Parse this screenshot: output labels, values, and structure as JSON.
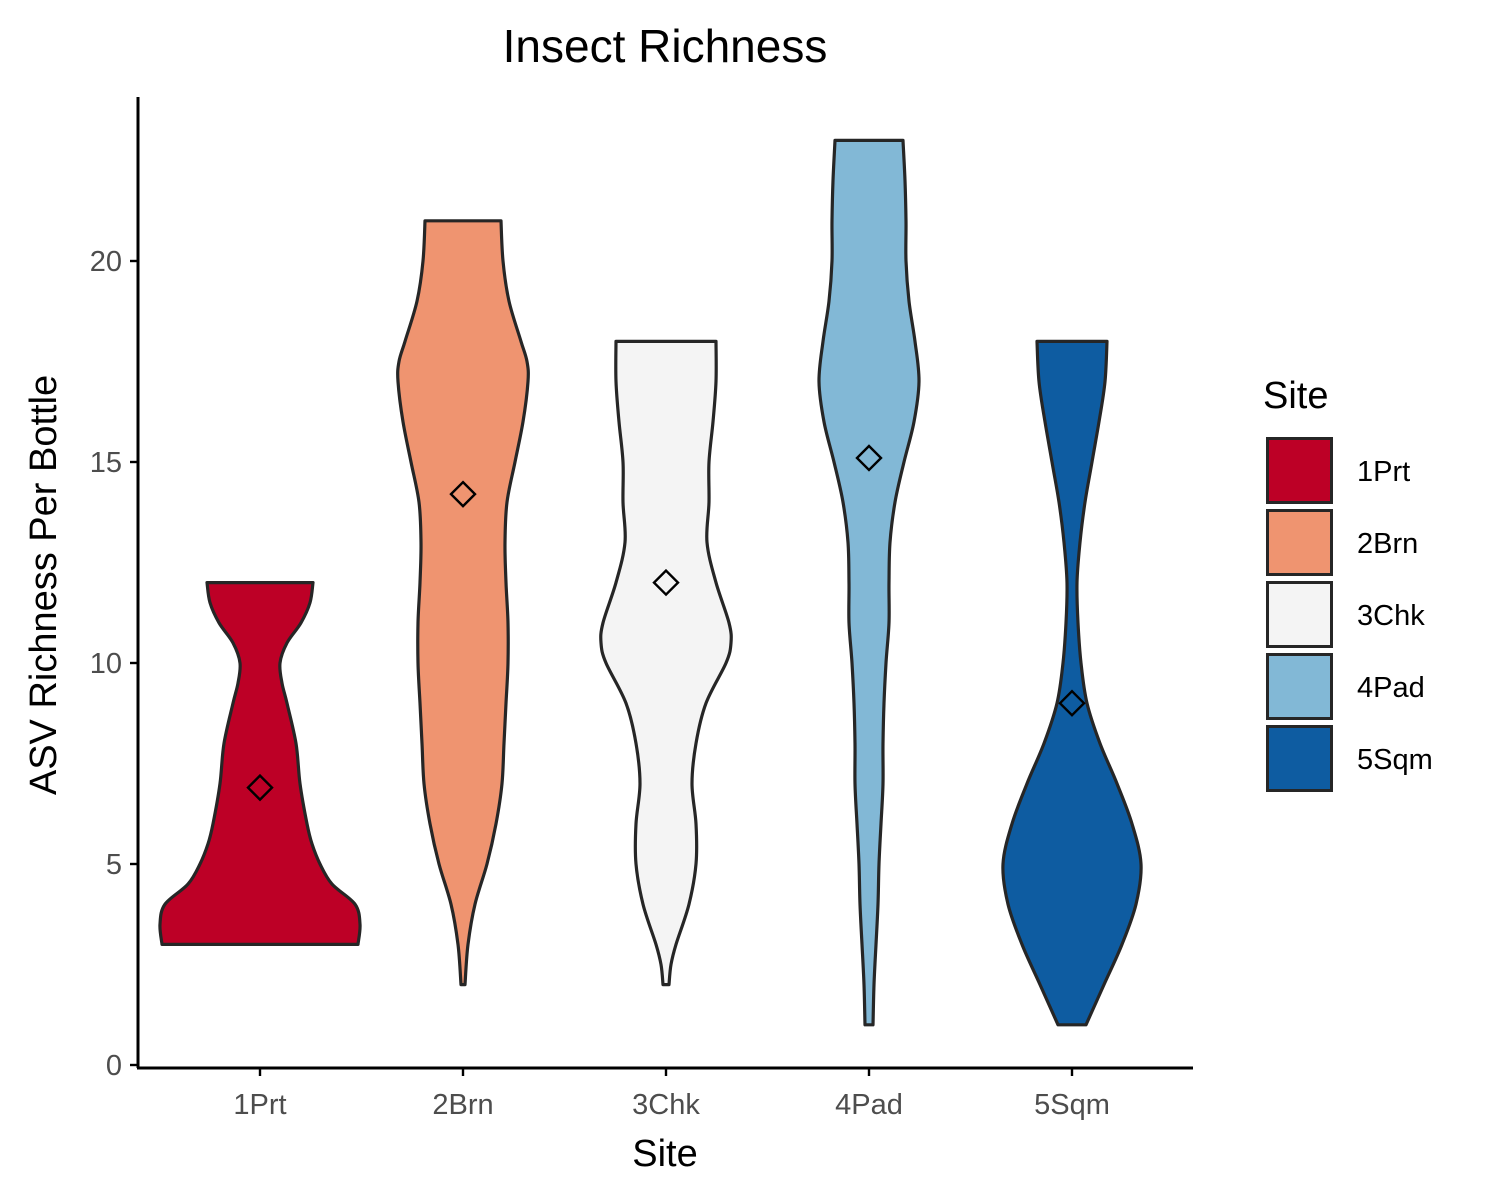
{
  "chart_data": {
    "type": "violin",
    "title": "Insect Richness",
    "xlabel": "Site",
    "ylabel": "ASV Richness Per Bottle",
    "ylim": [
      0,
      24
    ],
    "yticks": [
      0,
      5,
      10,
      15,
      20
    ],
    "categories": [
      "1Prt",
      "2Brn",
      "3Chk",
      "4Pad",
      "5Sqm"
    ],
    "grid": false,
    "legend": {
      "title": "Site",
      "placement": "right",
      "entries": [
        "1Prt",
        "2Brn",
        "3Chk",
        "4Pad",
        "5Sqm"
      ]
    },
    "marker": "open-diamond (mean)",
    "series": [
      {
        "category": "1Prt",
        "color": "#bd0026",
        "min": 3,
        "max": 12,
        "mean": 6.9,
        "profile": [
          [
            3,
            0.98
          ],
          [
            3.5,
            1.0
          ],
          [
            4,
            0.95
          ],
          [
            4.5,
            0.72
          ],
          [
            5,
            0.6
          ],
          [
            5.5,
            0.52
          ],
          [
            6,
            0.47
          ],
          [
            7,
            0.4
          ],
          [
            8,
            0.36
          ],
          [
            9,
            0.27
          ],
          [
            9.5,
            0.22
          ],
          [
            10,
            0.2
          ],
          [
            10.5,
            0.27
          ],
          [
            11,
            0.41
          ],
          [
            11.5,
            0.5
          ],
          [
            12,
            0.53
          ]
        ]
      },
      {
        "category": "2Brn",
        "color": "#ef9470",
        "min": 2,
        "max": 21,
        "mean": 14.2,
        "profile": [
          [
            2,
            0.02
          ],
          [
            3,
            0.05
          ],
          [
            4,
            0.12
          ],
          [
            5,
            0.24
          ],
          [
            6,
            0.33
          ],
          [
            7,
            0.39
          ],
          [
            8,
            0.41
          ],
          [
            9,
            0.43
          ],
          [
            10,
            0.45
          ],
          [
            11,
            0.45
          ],
          [
            12,
            0.43
          ],
          [
            13,
            0.42
          ],
          [
            14,
            0.44
          ],
          [
            15,
            0.52
          ],
          [
            16,
            0.6
          ],
          [
            17,
            0.65
          ],
          [
            17.5,
            0.64
          ],
          [
            18,
            0.58
          ],
          [
            19,
            0.46
          ],
          [
            20,
            0.4
          ],
          [
            21,
            0.38
          ]
        ]
      },
      {
        "category": "3Chk",
        "color": "#f4f4f4",
        "min": 2,
        "max": 18,
        "mean": 12.0,
        "profile": [
          [
            2,
            0.03
          ],
          [
            2.5,
            0.05
          ],
          [
            3,
            0.1
          ],
          [
            4,
            0.23
          ],
          [
            5,
            0.3
          ],
          [
            6,
            0.3
          ],
          [
            7,
            0.26
          ],
          [
            8,
            0.3
          ],
          [
            9,
            0.4
          ],
          [
            10,
            0.6
          ],
          [
            10.5,
            0.65
          ],
          [
            11,
            0.63
          ],
          [
            12,
            0.5
          ],
          [
            13,
            0.41
          ],
          [
            14,
            0.43
          ],
          [
            15,
            0.43
          ],
          [
            16,
            0.47
          ],
          [
            17,
            0.5
          ],
          [
            18,
            0.5
          ]
        ]
      },
      {
        "category": "4Pad",
        "color": "#82b8d6",
        "min": 1,
        "max": 23,
        "mean": 15.1,
        "profile": [
          [
            1,
            0.04
          ],
          [
            2,
            0.05
          ],
          [
            3,
            0.07
          ],
          [
            4,
            0.09
          ],
          [
            5,
            0.1
          ],
          [
            6,
            0.12
          ],
          [
            7,
            0.14
          ],
          [
            8,
            0.14
          ],
          [
            9,
            0.15
          ],
          [
            10,
            0.17
          ],
          [
            11,
            0.2
          ],
          [
            12,
            0.2
          ],
          [
            13,
            0.21
          ],
          [
            14,
            0.26
          ],
          [
            15,
            0.35
          ],
          [
            16,
            0.45
          ],
          [
            17,
            0.5
          ],
          [
            18,
            0.46
          ],
          [
            19,
            0.4
          ],
          [
            20,
            0.37
          ],
          [
            21,
            0.37
          ],
          [
            22,
            0.36
          ],
          [
            23,
            0.34
          ]
        ]
      },
      {
        "category": "5Sqm",
        "color": "#0e5ca1",
        "min": 1,
        "max": 18,
        "mean": 9.0,
        "profile": [
          [
            1,
            0.14
          ],
          [
            2,
            0.32
          ],
          [
            3,
            0.5
          ],
          [
            4,
            0.64
          ],
          [
            5,
            0.69
          ],
          [
            6,
            0.6
          ],
          [
            7,
            0.45
          ],
          [
            8,
            0.28
          ],
          [
            9,
            0.15
          ],
          [
            10,
            0.09
          ],
          [
            11,
            0.06
          ],
          [
            12,
            0.05
          ],
          [
            13,
            0.08
          ],
          [
            14,
            0.13
          ],
          [
            15,
            0.2
          ],
          [
            16,
            0.27
          ],
          [
            17,
            0.33
          ],
          [
            18,
            0.35
          ]
        ]
      }
    ]
  }
}
